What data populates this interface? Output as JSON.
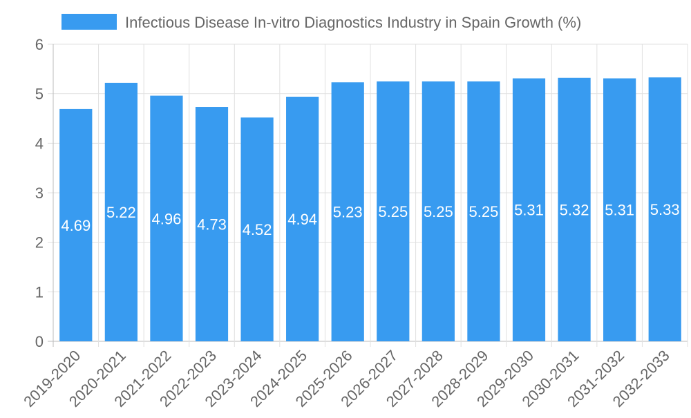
{
  "chart_data": {
    "type": "bar",
    "title": "",
    "legend": {
      "label": "Infectious Disease In-vitro Diagnostics Industry in Spain Growth (%)",
      "placement": "top"
    },
    "categories": [
      "2019-2020",
      "2020-2021",
      "2021-2022",
      "2022-2023",
      "2023-2024",
      "2024-2025",
      "2025-2026",
      "2026-2027",
      "2027-2028",
      "2028-2029",
      "2029-2030",
      "2030-2031",
      "2031-2032",
      "2032-2033"
    ],
    "values": [
      4.69,
      5.22,
      4.96,
      4.73,
      4.52,
      4.94,
      5.23,
      5.25,
      5.25,
      5.25,
      5.31,
      5.32,
      5.31,
      5.33
    ],
    "ylim": [
      0,
      6
    ],
    "yticks": [
      0,
      1,
      2,
      3,
      4,
      5,
      6
    ],
    "xlabel": "",
    "ylabel": "",
    "grid": true,
    "colors": {
      "bar": "#389bf0",
      "text": "#666666",
      "grid": "#e0e0e0",
      "label": "#ffffff"
    }
  }
}
